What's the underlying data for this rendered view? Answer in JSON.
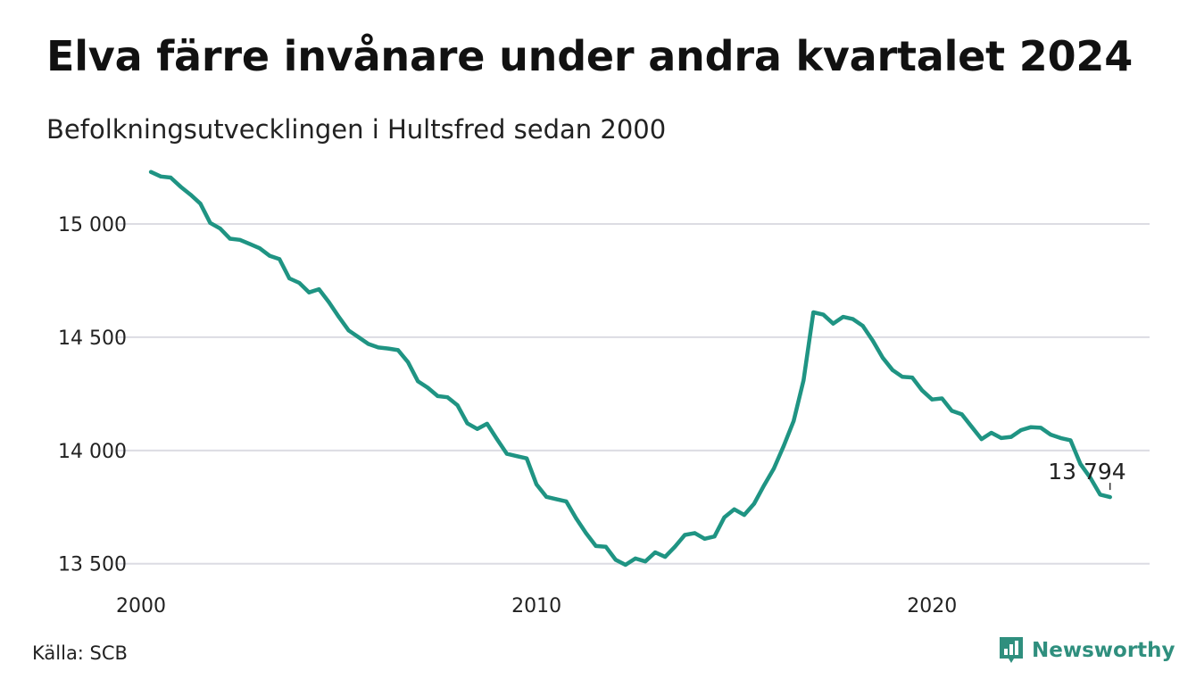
{
  "header": {
    "title": "Elva färre invånare under andra kvartalet 2024",
    "subtitle": "Befolkningsutvecklingen i Hultsfred sedan 2000"
  },
  "footer": {
    "source": "Källa: SCB",
    "brand": "Newsworthy",
    "brand_icon": "bar-chart-chat-icon"
  },
  "colors": {
    "line": "#1f9483",
    "grid": "#dcdce3",
    "brand": "#2f8f7e"
  },
  "chart_data": {
    "type": "line",
    "title": "Elva färre invånare under andra kvartalet 2024",
    "subtitle": "Befolkningsutvecklingen i Hultsfred sedan 2000",
    "xlabel": "",
    "ylabel": "",
    "xlim": [
      2000,
      2025.5
    ],
    "ylim": [
      13420,
      15280
    ],
    "grid": "horizontal",
    "legend": "none",
    "x_ticks": [
      {
        "value": 2000,
        "label": "2000"
      },
      {
        "value": 2010,
        "label": "2010"
      },
      {
        "value": 2020,
        "label": "2020"
      }
    ],
    "y_ticks": [
      {
        "value": 13500,
        "label": "13 500"
      },
      {
        "value": 14000,
        "label": "14 000"
      },
      {
        "value": 14500,
        "label": "14 500"
      },
      {
        "value": 15000,
        "label": "15 000"
      }
    ],
    "last_value_label": "13 794",
    "series": [
      {
        "x": [
          2000.25,
          2000.5,
          2000.75,
          2001.0,
          2001.25,
          2001.5,
          2001.75,
          2002.0,
          2002.25,
          2002.5,
          2002.75,
          2003.0,
          2003.25,
          2003.5,
          2003.75,
          2004.0,
          2004.25,
          2004.5,
          2004.75,
          2005.0,
          2005.25,
          2005.5,
          2005.75,
          2006.0,
          2006.25,
          2006.5,
          2006.75,
          2007.0,
          2007.25,
          2007.5,
          2007.75,
          2008.0,
          2008.25,
          2008.5,
          2008.75,
          2009.0,
          2009.25,
          2009.5,
          2009.75,
          2010.0,
          2010.25,
          2010.5,
          2010.75,
          2011.0,
          2011.25,
          2011.5,
          2011.75,
          2012.0,
          2012.25,
          2012.5,
          2012.75,
          2013.0,
          2013.25,
          2013.5,
          2013.75,
          2014.0,
          2014.25,
          2014.5,
          2014.75,
          2015.0,
          2015.25,
          2015.5,
          2015.75,
          2016.0,
          2016.25,
          2016.5,
          2016.75,
          2017.0,
          2017.25,
          2017.5,
          2017.75,
          2018.0,
          2018.25,
          2018.5,
          2018.75,
          2019.0,
          2019.25,
          2019.5,
          2019.75,
          2020.0,
          2020.25,
          2020.5,
          2020.75,
          2021.0,
          2021.25,
          2021.5,
          2021.75,
          2022.0,
          2022.25,
          2022.5,
          2022.75,
          2023.0,
          2023.25,
          2023.5,
          2023.75,
          2024.0,
          2024.25,
          2024.5
        ],
        "values": [
          15230,
          15210,
          15205,
          15165,
          15130,
          15090,
          15005,
          14980,
          14935,
          14930,
          14912,
          14893,
          14860,
          14845,
          14760,
          14740,
          14698,
          14712,
          14655,
          14590,
          14530,
          14500,
          14470,
          14455,
          14450,
          14443,
          14390,
          14306,
          14277,
          14240,
          14235,
          14200,
          14120,
          14095,
          14118,
          14050,
          13985,
          13975,
          13965,
          13850,
          13795,
          13785,
          13775,
          13700,
          13635,
          13578,
          13575,
          13517,
          13495,
          13523,
          13510,
          13550,
          13530,
          13575,
          13627,
          13635,
          13610,
          13620,
          13705,
          13740,
          13715,
          13765,
          13845,
          13920,
          14020,
          14130,
          14310,
          14610,
          14600,
          14560,
          14590,
          14580,
          14550,
          14485,
          14410,
          14355,
          14325,
          14322,
          14265,
          14225,
          14230,
          14175,
          14160,
          14105,
          14050,
          14078,
          14055,
          14060,
          14090,
          14103,
          14100,
          14070,
          14055,
          14045,
          13940,
          13880,
          13805,
          13794
        ]
      }
    ]
  }
}
